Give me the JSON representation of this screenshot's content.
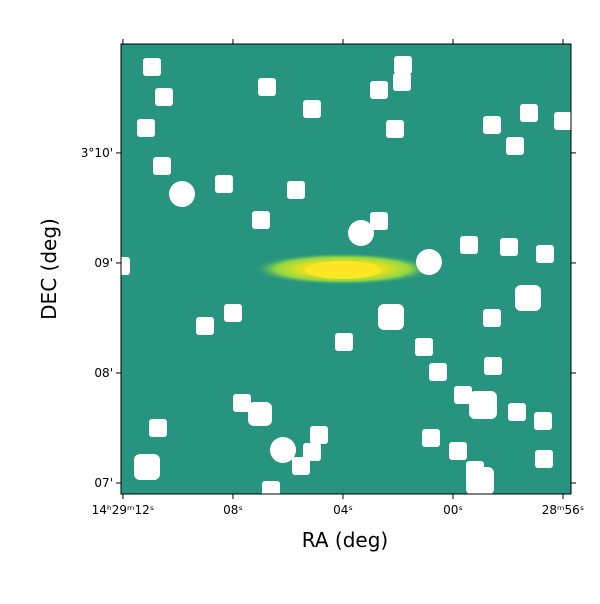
{
  "chart_data": {
    "type": "image",
    "xlabel": "RA (deg)",
    "ylabel": "DEC (deg)",
    "xlim": [
      12.07,
      -4.29
    ],
    "ylim": [
      6.9,
      10.99
    ],
    "xticks": [
      {
        "value": 12,
        "label": "14ʰ29ᵐ12ˢ"
      },
      {
        "value": 8,
        "label": "08ˢ"
      },
      {
        "value": 4,
        "label": "04ˢ"
      },
      {
        "value": 0,
        "label": "00ˢ"
      },
      {
        "value": -4,
        "label": "28ᵐ56ˢ"
      }
    ],
    "yticks": [
      {
        "value": 7,
        "label": "07'"
      },
      {
        "value": 8,
        "label": "08'"
      },
      {
        "value": 9,
        "label": "09'"
      },
      {
        "value": 10,
        "label": "3°10'"
      }
    ]
  }
}
